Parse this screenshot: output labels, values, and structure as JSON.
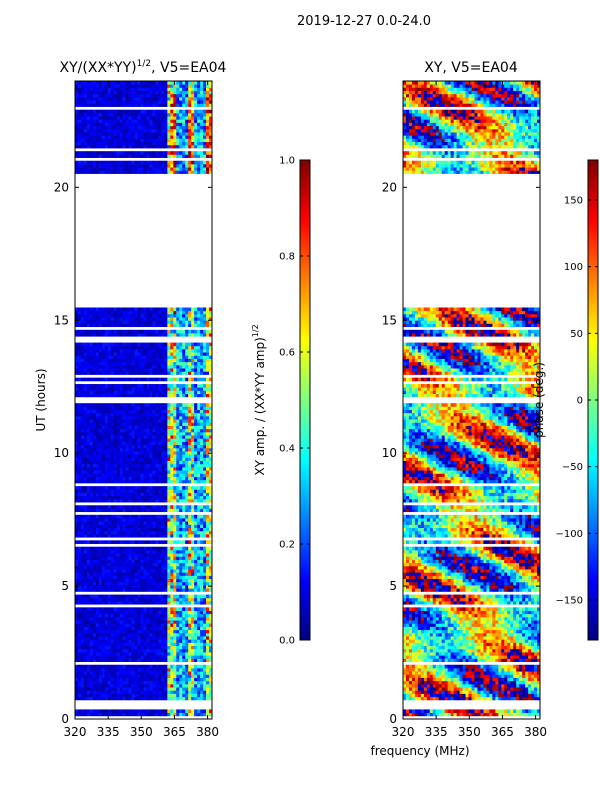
{
  "figure_title": "2019-12-27 0.0-24.0",
  "chart_data": [
    {
      "type": "heatmap",
      "title_main": "XY/(XX*YY)",
      "title_exp": "1/2",
      "title_tail": ", V5=EA04",
      "xlabel": "",
      "ylabel": "UT (hours)",
      "xlim": [
        320,
        382
      ],
      "ylim": [
        0,
        24
      ],
      "xticks": [
        320,
        335,
        350,
        365,
        380
      ],
      "yticks": [
        0,
        5,
        10,
        15,
        20
      ],
      "colorbar": {
        "label_main": "XY amp. / (XX*YY amp)",
        "label_exp": "1/2",
        "range": [
          0.0,
          1.0
        ],
        "ticks": [
          "0.0",
          "0.2",
          "0.4",
          "0.6",
          "0.8",
          "1.0"
        ],
        "colormap": "jet"
      },
      "data_blocks": [
        {
          "t_start": 0.0,
          "t_end": 15.6,
          "note": "low amplitude (dark blue) below 362 MHz, bright streaks 362-380 MHz"
        },
        {
          "t_start": 15.6,
          "t_end": 20.5,
          "note": "no data (flagged)"
        },
        {
          "t_start": 20.5,
          "t_end": 24.0,
          "note": "low amplitude below 362 MHz, high amplitude bands near 363-380 MHz"
        }
      ]
    },
    {
      "type": "heatmap",
      "title_main": "XY, V5=EA04",
      "xlabel": "frequency (MHz)",
      "ylabel": "",
      "xlim": [
        320,
        382
      ],
      "ylim": [
        0,
        24
      ],
      "xticks": [
        320,
        335,
        350,
        365,
        380
      ],
      "yticks": [
        0,
        5,
        10,
        15,
        20
      ],
      "colorbar": {
        "label": "phase (deg.)",
        "range": [
          -180,
          180
        ],
        "ticks": [
          "−150",
          "−100",
          "−50",
          "0",
          "50",
          "100",
          "150"
        ],
        "colormap": "jet"
      },
      "data_blocks": [
        {
          "t_start": 0.0,
          "t_end": 15.6,
          "note": "phase varies -180 to 180 deg across band"
        },
        {
          "t_start": 15.6,
          "t_end": 20.5,
          "note": "no data (flagged)"
        },
        {
          "t_start": 20.5,
          "t_end": 24.0,
          "note": "phase varies -180 to 180 deg across band"
        }
      ]
    }
  ]
}
